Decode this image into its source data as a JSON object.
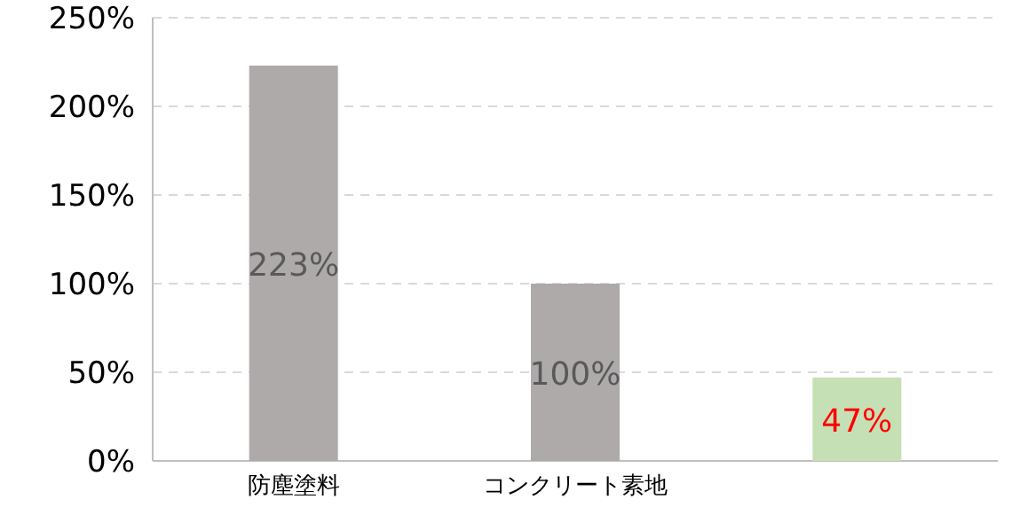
{
  "chart_data": {
    "type": "bar",
    "categories": [
      "防塵塗料",
      "コンクリート素地",
      null
    ],
    "values": [
      223,
      100,
      47
    ],
    "colors": [
      "#aeaaaa",
      "#aeaaaa",
      "#c5e0b4"
    ],
    "value_labels": [
      "223%",
      "100%",
      "47%"
    ],
    "ylim": [
      0,
      250
    ],
    "yticks": [
      {
        "value": 0,
        "label": "0%"
      },
      {
        "value": 50,
        "label": "50%"
      },
      {
        "value": 100,
        "label": "100%"
      },
      {
        "value": 150,
        "label": "150%"
      },
      {
        "value": 200,
        "label": "200%"
      },
      {
        "value": 250,
        "label": "250%"
      }
    ],
    "grid": "y"
  }
}
